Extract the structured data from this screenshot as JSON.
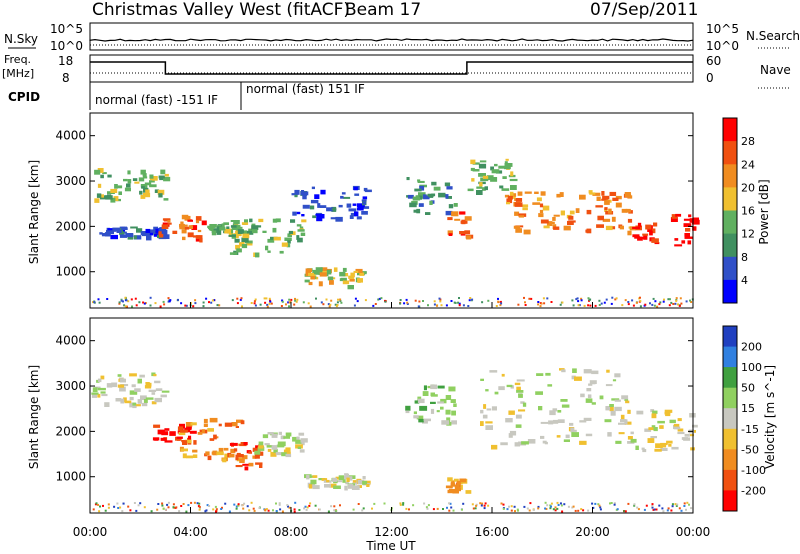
{
  "header": {
    "title": "Christmas Valley West (fitACF)",
    "beam": "Beam 17",
    "date": "07/Sep/2011"
  },
  "colors": {
    "power": [
      "#0000ff",
      "#3050c8",
      "#409060",
      "#60b060",
      "#f0c030",
      "#f08c20",
      "#f05010",
      "#ff0000"
    ],
    "velocity": [
      "#2040c0",
      "#3080e0",
      "#40a040",
      "#90d060",
      "#c8c8c0",
      "#f0c030",
      "#f08c20",
      "#f05010",
      "#ff0000"
    ]
  },
  "chart_data": [
    {
      "type": "line",
      "panel": "noise",
      "left_label": "N.Sky",
      "right_label": "N.Search",
      "left_ticks": [
        "10^5",
        "10^0"
      ],
      "right_ticks": [
        "10^5",
        "10^0"
      ],
      "x": [
        "00:00",
        "04:00",
        "08:00",
        "12:00",
        "16:00",
        "20:00",
        "00:00"
      ]
    },
    {
      "type": "line",
      "panel": "frequency",
      "left_label": "Freq.",
      "left_unit": "[MHz]",
      "right_label": "Nave",
      "left_ticks": [
        "18",
        "8"
      ],
      "right_ticks": [
        "60",
        "0"
      ],
      "cpid_label": "CPID",
      "cpid_segments": [
        {
          "label": "normal (fast) -151 IF",
          "start_hour": 0,
          "end_hour": 6
        },
        {
          "label": "normal (fast) 151 IF",
          "start_hour": 6,
          "end_hour": 24
        }
      ],
      "freq_steps": [
        {
          "start_hour": 0,
          "end_hour": 3,
          "level": "high"
        },
        {
          "start_hour": 3,
          "end_hour": 15,
          "level": "low"
        },
        {
          "start_hour": 15,
          "end_hour": 24,
          "level": "high"
        }
      ]
    },
    {
      "type": "heatmap",
      "panel": "power",
      "ylabel": "Slant Range [km]",
      "yticks": [
        "1000",
        "2000",
        "3000",
        "4000"
      ],
      "ylim": [
        200,
        4500
      ],
      "colorbar_label": "Power [dB]",
      "colorbar_ticks": [
        "4",
        "8",
        "12",
        "16",
        "20",
        "24",
        "28"
      ],
      "regions": [
        {
          "t0": 0.0,
          "t1": 3.0,
          "r0": 2600,
          "r1": 3300,
          "level": 3
        },
        {
          "t0": 0.3,
          "t1": 3.0,
          "r0": 1800,
          "r1": 2000,
          "level": 1
        },
        {
          "t0": 2.7,
          "t1": 4.5,
          "r0": 1700,
          "r1": 2300,
          "level": 6
        },
        {
          "t0": 4.5,
          "t1": 6.5,
          "r0": 1900,
          "r1": 2100,
          "level": 3
        },
        {
          "t0": 5.5,
          "t1": 8.5,
          "r0": 1400,
          "r1": 2200,
          "level": 3
        },
        {
          "t0": 8.5,
          "t1": 11.0,
          "r0": 700,
          "r1": 1100,
          "level": 4
        },
        {
          "t0": 8.0,
          "t1": 11.0,
          "r0": 2200,
          "r1": 2900,
          "level": 1
        },
        {
          "t0": 12.5,
          "t1": 14.5,
          "r0": 2300,
          "r1": 3100,
          "level": 2
        },
        {
          "t0": 14.2,
          "t1": 15.0,
          "r0": 1800,
          "r1": 2400,
          "level": 6
        },
        {
          "t0": 15.0,
          "t1": 17.0,
          "r0": 2800,
          "r1": 3500,
          "level": 3
        },
        {
          "t0": 16.5,
          "t1": 21.5,
          "r0": 1900,
          "r1": 2800,
          "level": 5
        },
        {
          "t0": 21.5,
          "t1": 22.5,
          "r0": 1600,
          "r1": 2100,
          "level": 7
        },
        {
          "t0": 23.0,
          "t1": 24.0,
          "r0": 1600,
          "r1": 2300,
          "level": 7
        }
      ],
      "ground_scatter_band": {
        "r0": 250,
        "r1": 450
      }
    },
    {
      "type": "heatmap",
      "panel": "velocity",
      "ylabel": "Slant Range [km]",
      "yticks": [
        "1000",
        "2000",
        "3000",
        "4000"
      ],
      "ylim": [
        200,
        4500
      ],
      "xlabel": "Time UT",
      "colorbar_label": "Velocity [m s^-1]",
      "colorbar_ticks": [
        "200",
        "100",
        "50",
        "15",
        "-15",
        "-50",
        "-100",
        "-200"
      ],
      "regions": [
        {
          "t0": 0.0,
          "t1": 3.0,
          "r0": 2600,
          "r1": 3300,
          "level": 4
        },
        {
          "t0": 2.5,
          "t1": 4.0,
          "r0": 1800,
          "r1": 2200,
          "level": 8
        },
        {
          "t0": 3.5,
          "t1": 6.0,
          "r0": 1400,
          "r1": 2300,
          "level": 6
        },
        {
          "t0": 5.5,
          "t1": 7.0,
          "r0": 1200,
          "r1": 1800,
          "level": 7
        },
        {
          "t0": 6.5,
          "t1": 8.5,
          "r0": 1500,
          "r1": 2000,
          "level": 4
        },
        {
          "t0": 8.5,
          "t1": 11.0,
          "r0": 800,
          "r1": 1100,
          "level": 4
        },
        {
          "t0": 12.5,
          "t1": 14.5,
          "r0": 2200,
          "r1": 3100,
          "level": 3
        },
        {
          "t0": 14.0,
          "t1": 15.0,
          "r0": 700,
          "r1": 1000,
          "level": 6
        },
        {
          "t0": 15.5,
          "t1": 21.5,
          "r0": 1700,
          "r1": 3400,
          "level": 4
        },
        {
          "t0": 21.5,
          "t1": 24.0,
          "r0": 1600,
          "r1": 2500,
          "level": 4
        }
      ],
      "ground_scatter_band": {
        "r0": 250,
        "r1": 450
      }
    }
  ]
}
